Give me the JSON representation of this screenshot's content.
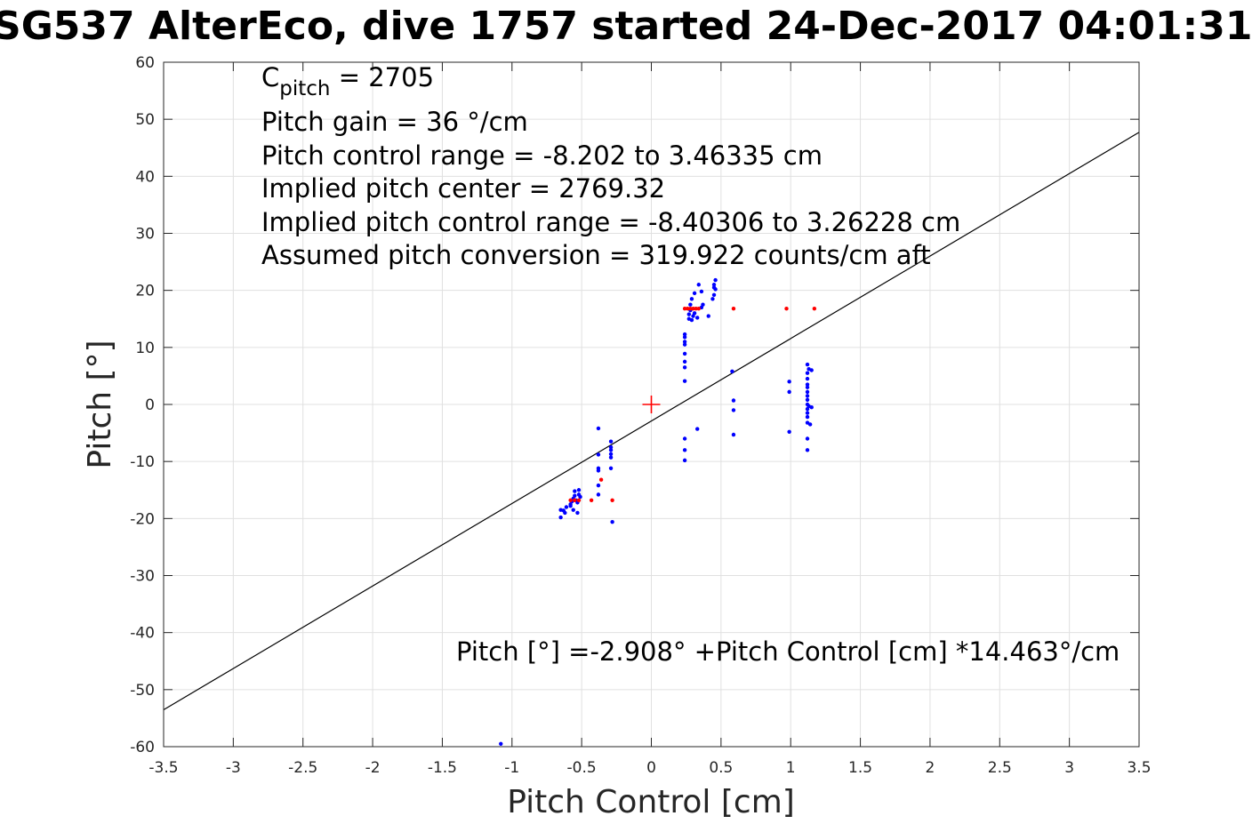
{
  "chart_data": {
    "type": "scatter",
    "title": "SG537 AlterEco, dive 1757 started 24-Dec-2017 04:01:31",
    "xlabel": "Pitch Control [cm]",
    "ylabel": "Pitch [°]",
    "xlim": [
      -3.5,
      3.5
    ],
    "ylim": [
      -60,
      60
    ],
    "xticks": [
      "-3.5",
      "-3",
      "-2.5",
      "-2",
      "-1.5",
      "-1",
      "-0.5",
      "0",
      "0.5",
      "1",
      "1.5",
      "2",
      "2.5",
      "3",
      "3.5"
    ],
    "yticks": [
      "60",
      "50",
      "40",
      "30",
      "20",
      "10",
      "0",
      "-10",
      "-20",
      "-30",
      "-40",
      "-50",
      "-60"
    ],
    "grid": true,
    "annotations": {
      "c_pitch_symbol": "C",
      "c_pitch_subscript": "pitch",
      "c_pitch_value": " = 2705",
      "pitch_gain": "Pitch gain = 36 °/cm",
      "control_range": "Pitch control range = -8.202 to 3.46335 cm",
      "implied_center": "Implied pitch center = 2769.32",
      "implied_range": "Implied pitch control range = -8.40306 to 3.26228 cm",
      "conversion": "Assumed pitch conversion = 319.922 counts/cm aft",
      "fit_equation": "Pitch [°] =-2.908° +Pitch Control [cm] *14.463°/cm"
    },
    "fit_line": {
      "intercept": -2.908,
      "slope": 14.463,
      "color": "#000000"
    },
    "center_marker": {
      "x": 0,
      "y": 0,
      "color": "#ff0000"
    },
    "series": [
      {
        "color": "#0000ff",
        "points": [
          [
            -0.65,
            -19.8
          ],
          [
            -0.65,
            -18.5
          ],
          [
            -0.63,
            -18.6
          ],
          [
            -0.62,
            -19.0
          ],
          [
            -0.61,
            -18.0
          ],
          [
            -0.58,
            -17.5
          ],
          [
            -0.57,
            -17.0
          ],
          [
            -0.56,
            -16.5
          ],
          [
            -0.55,
            -16.0
          ],
          [
            -0.55,
            -15.2
          ],
          [
            -0.54,
            -16.8
          ],
          [
            -0.53,
            -17.2
          ],
          [
            -0.52,
            -15.8
          ],
          [
            -0.52,
            -15.0
          ],
          [
            -0.51,
            -16.2
          ],
          [
            -0.56,
            -18.5
          ],
          [
            -0.53,
            -19.0
          ],
          [
            -0.58,
            -17.8
          ],
          [
            -0.38,
            -4.2
          ],
          [
            -0.38,
            -8.8
          ],
          [
            -0.38,
            -11.2
          ],
          [
            -0.38,
            -11.6
          ],
          [
            -0.38,
            -14.2
          ],
          [
            -0.38,
            -15.8
          ],
          [
            -0.29,
            -6.5
          ],
          [
            -0.29,
            -7.5
          ],
          [
            -0.29,
            -8.0
          ],
          [
            -0.29,
            -8.7
          ],
          [
            -0.29,
            -9.3
          ],
          [
            -0.29,
            -11.2
          ],
          [
            -0.28,
            -20.6
          ],
          [
            0.24,
            4.1
          ],
          [
            0.24,
            6.5
          ],
          [
            0.24,
            7.5
          ],
          [
            0.24,
            8.9
          ],
          [
            0.24,
            10.5
          ],
          [
            0.24,
            11.0
          ],
          [
            0.24,
            11.8
          ],
          [
            0.24,
            12.3
          ],
          [
            0.24,
            -6.0
          ],
          [
            0.24,
            -8.0
          ],
          [
            0.24,
            -9.8
          ],
          [
            0.27,
            15.0
          ],
          [
            0.27,
            15.8
          ],
          [
            0.28,
            16.5
          ],
          [
            0.28,
            17.5
          ],
          [
            0.29,
            14.8
          ],
          [
            0.29,
            18.5
          ],
          [
            0.3,
            15.5
          ],
          [
            0.31,
            16.0
          ],
          [
            0.31,
            19.5
          ],
          [
            0.33,
            15.2
          ],
          [
            0.34,
            21.0
          ],
          [
            0.36,
            17.0
          ],
          [
            0.36,
            19.8
          ],
          [
            0.37,
            17.5
          ],
          [
            0.41,
            15.5
          ],
          [
            0.44,
            18.5
          ],
          [
            0.45,
            19.2
          ],
          [
            0.45,
            20.5
          ],
          [
            0.45,
            21.0
          ],
          [
            0.46,
            21.8
          ],
          [
            0.46,
            20.2
          ],
          [
            0.33,
            -4.3
          ],
          [
            0.58,
            5.8
          ],
          [
            0.59,
            0.7
          ],
          [
            0.59,
            -1.0
          ],
          [
            0.59,
            -5.3
          ],
          [
            0.99,
            4.0
          ],
          [
            0.99,
            2.2
          ],
          [
            0.99,
            -4.8
          ],
          [
            1.12,
            7.0
          ],
          [
            1.12,
            5.5
          ],
          [
            1.12,
            4.5
          ],
          [
            1.12,
            3.5
          ],
          [
            1.12,
            3.0
          ],
          [
            1.12,
            2.2
          ],
          [
            1.12,
            1.5
          ],
          [
            1.12,
            0.8
          ],
          [
            1.12,
            0.0
          ],
          [
            1.12,
            -0.8
          ],
          [
            1.12,
            -1.5
          ],
          [
            1.12,
            -2.2
          ],
          [
            1.12,
            -3.2
          ],
          [
            1.12,
            -6.0
          ],
          [
            1.12,
            -8.0
          ],
          [
            1.13,
            6.2
          ],
          [
            1.13,
            -0.3
          ],
          [
            1.14,
            -3.5
          ],
          [
            1.15,
            6.0
          ],
          [
            1.15,
            -0.5
          ],
          [
            -1.08,
            -59.5
          ]
        ]
      },
      {
        "color": "#ff0000",
        "points": [
          [
            -0.58,
            -16.8
          ],
          [
            -0.55,
            -16.8
          ],
          [
            -0.52,
            -16.8
          ],
          [
            -0.43,
            -16.8
          ],
          [
            -0.36,
            -13.2
          ],
          [
            -0.28,
            -16.8
          ],
          [
            0.24,
            16.8
          ],
          [
            0.26,
            16.8
          ],
          [
            0.28,
            16.8
          ],
          [
            0.3,
            16.8
          ],
          [
            0.32,
            16.8
          ],
          [
            0.34,
            16.8
          ],
          [
            0.59,
            16.8
          ],
          [
            0.97,
            16.8
          ],
          [
            1.17,
            16.8
          ]
        ]
      }
    ]
  }
}
